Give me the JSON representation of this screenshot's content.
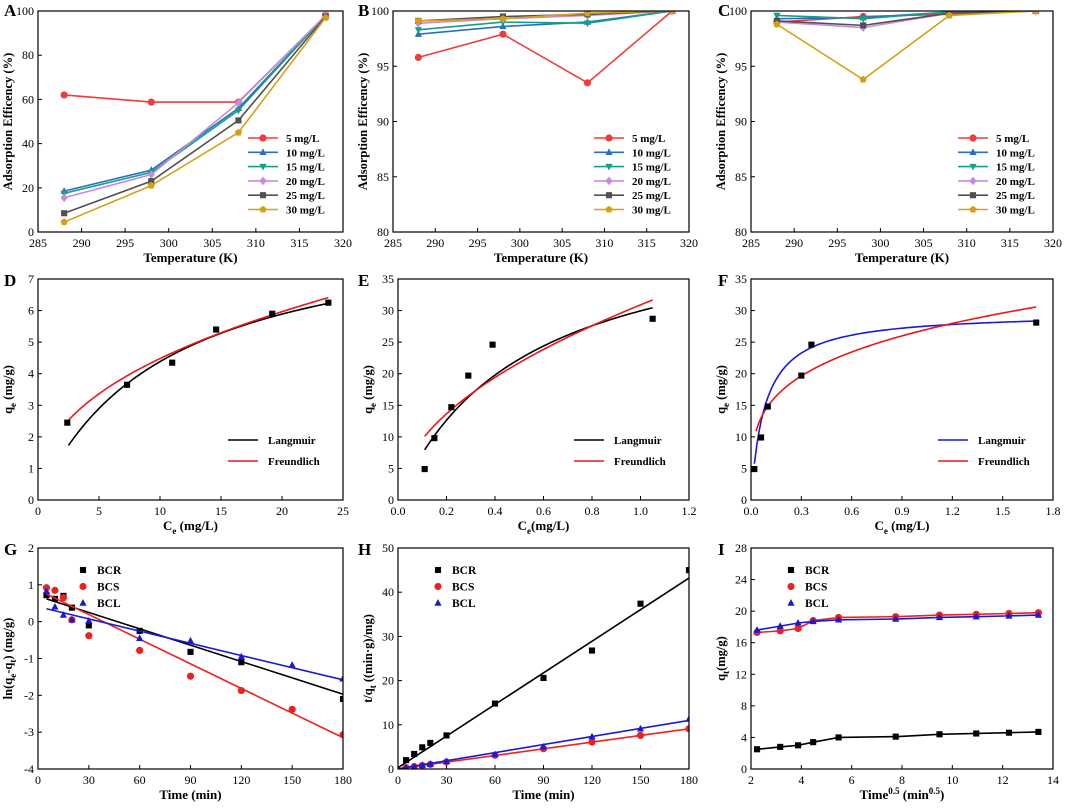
{
  "figure": {
    "background": "#ffffff"
  },
  "chart_data": [
    {
      "panel": "A",
      "type": "line",
      "xlabel": "Temperature (K)",
      "ylabel": "Adsorption Efficency (%)",
      "xlim": [
        285,
        320
      ],
      "ylim": [
        0,
        100
      ],
      "xticks": [
        285,
        290,
        295,
        300,
        305,
        310,
        315,
        320
      ],
      "yticks": [
        0,
        20,
        40,
        60,
        80,
        100
      ],
      "legend_position": "center-right",
      "x": [
        288,
        298,
        308,
        318
      ],
      "series": [
        {
          "name": "5 mg/L",
          "color": "#f03c3c",
          "marker": "circle",
          "values": [
            62,
            58.8,
            58.8,
            98
          ]
        },
        {
          "name": "10 mg/L",
          "color": "#2a6fc0",
          "marker": "triangle-up",
          "values": [
            18.5,
            28,
            56,
            98
          ]
        },
        {
          "name": "15 mg/L",
          "color": "#13a08a",
          "marker": "triangle-down",
          "values": [
            17.5,
            27,
            55,
            98
          ]
        },
        {
          "name": "20 mg/L",
          "color": "#c88bdc",
          "marker": "diamond",
          "values": [
            15.5,
            26,
            58.5,
            98
          ]
        },
        {
          "name": "25 mg/L",
          "color": "#505050",
          "marker": "square",
          "values": [
            8.5,
            23,
            50.5,
            97.5
          ]
        },
        {
          "name": "30 mg/L",
          "color": "#d4a017",
          "marker": "pentagon",
          "values": [
            4.5,
            21,
            45,
            97
          ]
        }
      ]
    },
    {
      "panel": "B",
      "type": "line",
      "xlabel": "Temperature (K)",
      "ylabel": "Adsorption Efficency (%)",
      "xlim": [
        285,
        320
      ],
      "ylim": [
        80,
        100
      ],
      "xticks": [
        285,
        290,
        295,
        300,
        305,
        310,
        315,
        320
      ],
      "yticks": [
        80,
        85,
        90,
        95,
        100
      ],
      "legend_position": "bottom-right",
      "x": [
        288,
        298,
        308,
        318
      ],
      "series": [
        {
          "name": "5 mg/L",
          "color": "#f03c3c",
          "marker": "circle",
          "values": [
            95.8,
            97.9,
            93.5,
            100
          ]
        },
        {
          "name": "10 mg/L",
          "color": "#2a6fc0",
          "marker": "triangle-up",
          "values": [
            97.9,
            98.6,
            99.0,
            100
          ]
        },
        {
          "name": "15 mg/L",
          "color": "#13a08a",
          "marker": "triangle-down",
          "values": [
            98.3,
            99.0,
            98.9,
            100
          ]
        },
        {
          "name": "20 mg/L",
          "color": "#c88bdc",
          "marker": "diamond",
          "values": [
            98.9,
            99.3,
            99.6,
            100
          ]
        },
        {
          "name": "25 mg/L",
          "color": "#505050",
          "marker": "square",
          "values": [
            99.1,
            99.5,
            99.7,
            100
          ]
        },
        {
          "name": "30 mg/L",
          "color": "#d4a017",
          "marker": "pentagon",
          "values": [
            99.1,
            99.3,
            99.8,
            100
          ]
        }
      ]
    },
    {
      "panel": "C",
      "type": "line",
      "xlabel": "Temperature (K)",
      "ylabel": "Adsorption Efficency (%)",
      "xlim": [
        285,
        320
      ],
      "ylim": [
        80,
        100
      ],
      "xticks": [
        285,
        290,
        295,
        300,
        305,
        310,
        315,
        320
      ],
      "yticks": [
        80,
        85,
        90,
        95,
        100
      ],
      "legend_position": "bottom-right",
      "x": [
        288,
        298,
        308,
        318
      ],
      "series": [
        {
          "name": "5 mg/L",
          "color": "#f03c3c",
          "marker": "circle",
          "values": [
            99.0,
            99.5,
            99.7,
            100
          ]
        },
        {
          "name": "10 mg/L",
          "color": "#2a6fc0",
          "marker": "triangle-up",
          "values": [
            99.3,
            99.4,
            99.9,
            100
          ]
        },
        {
          "name": "15 mg/L",
          "color": "#13a08a",
          "marker": "triangle-down",
          "values": [
            99.6,
            99.3,
            99.9,
            100
          ]
        },
        {
          "name": "20 mg/L",
          "color": "#c88bdc",
          "marker": "diamond",
          "values": [
            99.0,
            98.5,
            99.8,
            100
          ]
        },
        {
          "name": "25 mg/L",
          "color": "#505050",
          "marker": "square",
          "values": [
            99.1,
            98.7,
            99.8,
            100
          ]
        },
        {
          "name": "30 mg/L",
          "color": "#d4a017",
          "marker": "pentagon",
          "values": [
            98.8,
            93.8,
            99.6,
            100
          ]
        }
      ]
    },
    {
      "panel": "D",
      "type": "scatter",
      "xlabel": "C_e (mg/L)",
      "ylabel": "q_e (mg/g)",
      "xlim": [
        0,
        25
      ],
      "ylim": [
        0,
        7
      ],
      "xticks": [
        0,
        5,
        10,
        15,
        20,
        25
      ],
      "yticks": [
        0,
        1,
        2,
        3,
        4,
        5,
        6,
        7
      ],
      "legend_position": "bottom-right",
      "points": {
        "x": [
          2.4,
          7.3,
          11.0,
          14.6,
          19.2,
          23.8
        ],
        "y": [
          2.45,
          3.65,
          4.35,
          5.4,
          5.9,
          6.25
        ]
      },
      "fits": [
        {
          "name": "Langmuir",
          "color": "#000000",
          "model": "langmuir",
          "params": {
            "qm": 8.97,
            "K": 0.0955
          },
          "range": [
            2.5,
            23.8
          ]
        },
        {
          "name": "Freundlich",
          "color": "#e8181d",
          "model": "freundlich",
          "params": {
            "K": 1.73,
            "n": 2.42
          },
          "range": [
            2.5,
            23.8
          ]
        }
      ]
    },
    {
      "panel": "E",
      "type": "scatter",
      "xlabel": "C_e(mg/L)",
      "ylabel": "q_e (mg/g)",
      "xlim": [
        0,
        1.2
      ],
      "ylim": [
        0,
        35
      ],
      "xticks": [
        0.0,
        0.2,
        0.4,
        0.6,
        0.8,
        1.0,
        1.2
      ],
      "yticks": [
        0,
        5,
        10,
        15,
        20,
        25,
        30,
        35
      ],
      "legend_position": "bottom-right",
      "points": {
        "x": [
          0.11,
          0.15,
          0.22,
          0.29,
          0.39,
          1.05
        ],
        "y": [
          4.9,
          9.8,
          14.7,
          19.7,
          24.6,
          28.7
        ]
      },
      "fits": [
        {
          "name": "Langmuir",
          "color": "#000000",
          "model": "langmuir",
          "params": {
            "qm": 45.55,
            "K": 1.92
          },
          "range": [
            0.11,
            1.05
          ]
        },
        {
          "name": "Freundlich",
          "color": "#e8181d",
          "model": "freundlich",
          "params": {
            "K": 30.9,
            "n": 1.97
          },
          "range": [
            0.11,
            1.05
          ]
        }
      ]
    },
    {
      "panel": "F",
      "type": "scatter",
      "xlabel": "C_e (mg/L)",
      "ylabel": "q_e (mg/g)",
      "xlim": [
        0,
        1.8
      ],
      "ylim": [
        0,
        35
      ],
      "xticks": [
        0.0,
        0.3,
        0.6,
        0.9,
        1.2,
        1.5,
        1.8
      ],
      "yticks": [
        0,
        5,
        10,
        15,
        20,
        25,
        30,
        35
      ],
      "legend_position": "bottom-right",
      "points": {
        "x": [
          0.02,
          0.06,
          0.1,
          0.3,
          0.36,
          1.7
        ],
        "y": [
          4.9,
          9.9,
          14.8,
          19.7,
          24.6,
          28.1
        ]
      },
      "fits": [
        {
          "name": "Langmuir",
          "color": "#1a1ad6",
          "model": "langmuir",
          "params": {
            "qm": 29.73,
            "K": 12.0
          },
          "range": [
            0.02,
            1.7
          ]
        },
        {
          "name": "Freundlich",
          "color": "#e8181d",
          "model": "freundlich",
          "params": {
            "K": 26.7,
            "n": 3.92
          },
          "range": [
            0.03,
            1.7
          ]
        }
      ]
    },
    {
      "panel": "G",
      "type": "scatter",
      "xlabel": "Time (min)",
      "ylabel": "ln(q_e-q_t) (mg/g)",
      "xlim": [
        0,
        180
      ],
      "ylim": [
        -4,
        2
      ],
      "xticks": [
        0,
        30,
        60,
        90,
        120,
        150,
        180
      ],
      "yticks": [
        -4,
        -3,
        -2,
        -1,
        0,
        1,
        2
      ],
      "legend_position": "top-left",
      "series": [
        {
          "name": "BCR",
          "color": "#000000",
          "marker": "square",
          "x": [
            5,
            10,
            15,
            20,
            30,
            60,
            90,
            120,
            180
          ],
          "y": [
            0.72,
            0.62,
            0.7,
            0.38,
            -0.1,
            -0.25,
            -0.82,
            -1.1,
            -2.1
          ],
          "fit": [
            [
              5,
              0.62
            ],
            [
              180,
              -1.97
            ]
          ]
        },
        {
          "name": "BCS",
          "color": "#f02020",
          "marker": "circle",
          "x": [
            5,
            10,
            15,
            20,
            30,
            60,
            90,
            120,
            150,
            180
          ],
          "y": [
            0.92,
            0.85,
            0.65,
            0.05,
            -0.38,
            -0.78,
            -1.48,
            -1.87,
            -2.38,
            -3.07
          ],
          "fit": [
            [
              5,
              0.75
            ],
            [
              180,
              -3.15
            ]
          ]
        },
        {
          "name": "BCL",
          "color": "#1a1ad6",
          "marker": "triangle-up",
          "x": [
            5,
            10,
            15,
            20,
            30,
            60,
            90,
            120,
            150,
            180
          ],
          "y": [
            0.82,
            0.4,
            0.18,
            0.05,
            0.02,
            -0.45,
            -0.52,
            -0.95,
            -1.18,
            -1.55
          ],
          "fit": [
            [
              5,
              0.35
            ],
            [
              180,
              -1.58
            ]
          ]
        }
      ]
    },
    {
      "panel": "H",
      "type": "scatter",
      "xlabel": "Time (min)",
      "ylabel": "t/q_t ((min·g)/mg)",
      "xlim": [
        0,
        180
      ],
      "ylim": [
        0,
        50
      ],
      "xticks": [
        0,
        30,
        60,
        90,
        120,
        150,
        180
      ],
      "yticks": [
        0,
        10,
        20,
        30,
        40,
        50
      ],
      "legend_position": "top-left",
      "series": [
        {
          "name": "BCR",
          "color": "#000000",
          "marker": "square",
          "x": [
            5,
            10,
            15,
            20,
            30,
            60,
            90,
            120,
            150,
            180
          ],
          "y": [
            2.0,
            3.4,
            4.9,
            5.9,
            7.6,
            14.8,
            20.6,
            26.8,
            37.4,
            45.0
          ],
          "fit": [
            [
              0,
              0.3
            ],
            [
              180,
              43.2
            ]
          ]
        },
        {
          "name": "BCS",
          "color": "#f02020",
          "marker": "circle",
          "x": [
            5,
            10,
            15,
            20,
            30,
            60,
            90,
            120,
            150,
            180
          ],
          "y": [
            0.3,
            0.55,
            0.8,
            1.05,
            1.6,
            3.1,
            4.6,
            6.1,
            7.6,
            9.1
          ],
          "fit": [
            [
              0,
              0.05
            ],
            [
              180,
              9.1
            ]
          ]
        },
        {
          "name": "BCL",
          "color": "#1a1ad6",
          "marker": "triangle-up",
          "x": [
            5,
            10,
            15,
            20,
            30,
            60,
            90,
            120,
            150,
            180
          ],
          "y": [
            0.3,
            0.55,
            0.8,
            1.1,
            1.7,
            3.3,
            5.0,
            7.3,
            9.1,
            11.3
          ],
          "fit": [
            [
              0,
              0.05
            ],
            [
              180,
              11.0
            ]
          ]
        }
      ]
    },
    {
      "panel": "I",
      "type": "line",
      "xlabel": "Time^0.5 (min^0.5)",
      "ylabel": "q_t(mg/g)",
      "xlim": [
        2,
        14
      ],
      "ylim": [
        0,
        28
      ],
      "xticks": [
        2,
        4,
        6,
        8,
        10,
        12,
        14
      ],
      "yticks": [
        0,
        4,
        8,
        12,
        16,
        20,
        24,
        28
      ],
      "legend_position": "top-left",
      "series": [
        {
          "name": "BCR",
          "color": "#000000",
          "marker": "square",
          "x": [
            2.24,
            3.16,
            3.87,
            4.47,
            5.48,
            7.75,
            9.49,
            10.95,
            12.25,
            13.42
          ],
          "y": [
            2.5,
            2.8,
            3.0,
            3.4,
            4.0,
            4.1,
            4.4,
            4.5,
            4.6,
            4.7
          ]
        },
        {
          "name": "BCS",
          "color": "#f02020",
          "marker": "circle",
          "x": [
            2.24,
            3.16,
            3.87,
            4.47,
            5.48,
            7.75,
            9.49,
            10.95,
            12.25,
            13.42
          ],
          "y": [
            17.3,
            17.5,
            17.8,
            18.8,
            19.2,
            19.3,
            19.5,
            19.6,
            19.7,
            19.8
          ]
        },
        {
          "name": "BCL",
          "color": "#1a1ad6",
          "marker": "triangle-up",
          "x": [
            2.24,
            3.16,
            3.87,
            4.47,
            5.48,
            7.75,
            9.49,
            10.95,
            12.25,
            13.42
          ],
          "y": [
            17.6,
            18.1,
            18.5,
            18.7,
            18.9,
            19.0,
            19.2,
            19.3,
            19.4,
            19.5
          ]
        }
      ]
    }
  ]
}
